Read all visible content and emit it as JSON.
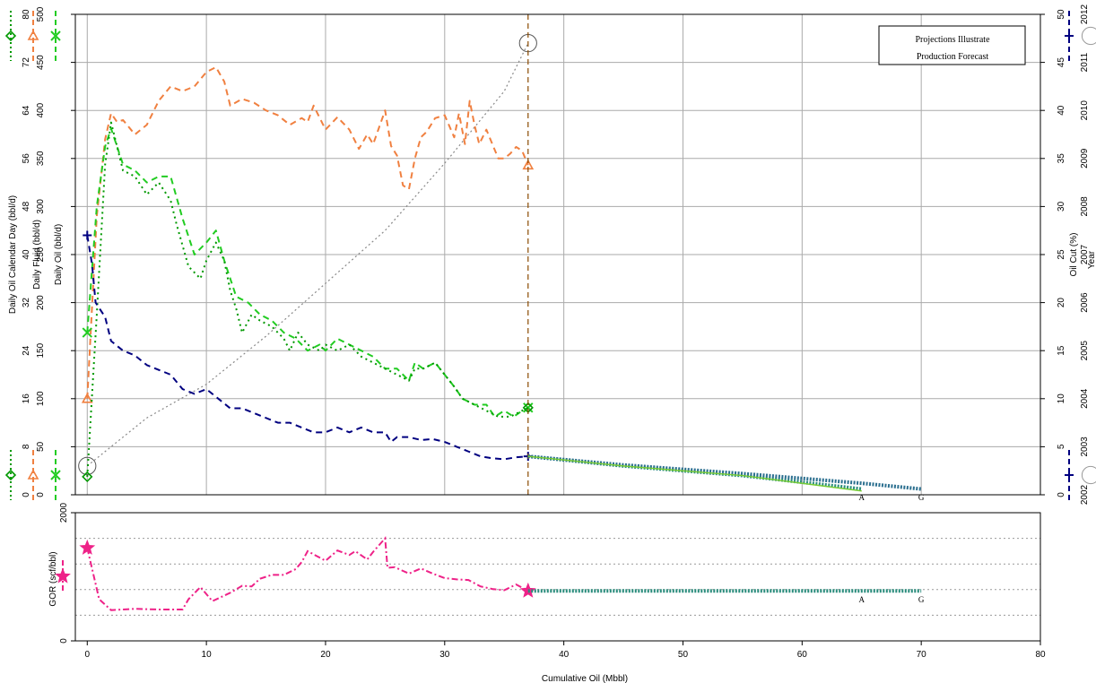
{
  "chart_data": [
    {
      "type": "line",
      "title": "",
      "xlabel": "Cumulative Oil (Mbbl)",
      "xlim": [
        -1,
        80
      ],
      "x_ticks": [
        "0",
        "10",
        "20",
        "30",
        "40",
        "50",
        "60",
        "70",
        "80"
      ],
      "grid": true,
      "left_axes": [
        {
          "label": "Daily Oil Calendar Day (bbl/d)",
          "ylim": [
            0,
            80
          ],
          "ticks": [
            "0",
            "8",
            "16",
            "24",
            "32",
            "40",
            "48",
            "56",
            "64",
            "72",
            "80"
          ]
        },
        {
          "label": "Daily Fluid (bbl/d)",
          "ylim": [
            0,
            500
          ],
          "ticks": [
            "0",
            "50",
            "100",
            "150",
            "200",
            "250",
            "300",
            "350",
            "400",
            "450",
            "500"
          ]
        },
        {
          "label": "Daily Oil (bbl/d)",
          "ylim": [
            0,
            500
          ],
          "ticks": []
        }
      ],
      "right_axes": [
        {
          "label": "Oil Cut (%)",
          "ylim": [
            0,
            50
          ],
          "ticks": [
            "0",
            "5",
            "10",
            "15",
            "20",
            "25",
            "30",
            "35",
            "40",
            "45",
            "50"
          ]
        },
        {
          "label": "Year",
          "ylim": [
            2002,
            2012
          ],
          "ticks": [
            "2002",
            "2003",
            "2004",
            "2005",
            "2006",
            "2007",
            "2008",
            "2009",
            "2010",
            "2011",
            "2012"
          ]
        }
      ],
      "legend_box": {
        "line1": "Projections Illustrate",
        "line2": "Production Forecast",
        "placement": "top-right"
      },
      "marker_keys": {
        "left": [
          {
            "color": "#009900",
            "symbol": "◇"
          },
          {
            "color": "#f08040",
            "symbol": "△"
          },
          {
            "color": "#22cc22",
            "symbol": "✕"
          }
        ],
        "right": [
          {
            "color": "#000080",
            "symbol": "+"
          },
          {
            "color": "#999999",
            "symbol": "○"
          }
        ]
      },
      "vline_x": 37,
      "forecast_labels": [
        {
          "text": "A",
          "x": 65
        },
        {
          "text": "G",
          "x": 70
        }
      ],
      "series": [
        {
          "color": "#f08040",
          "dash": "7,5",
          "axis": "Daily Fluid (bbl/d)",
          "marker": "triangle",
          "x": [
            0,
            0.8,
            1.5,
            2,
            2.5,
            3,
            4,
            5,
            6,
            7,
            8,
            9,
            10,
            10.8,
            11.5,
            12,
            13,
            14,
            15,
            16,
            17,
            18,
            18.5,
            19,
            20,
            21,
            22,
            22.8,
            23.5,
            24,
            25,
            25.5,
            26,
            26.5,
            27,
            27.5,
            28,
            28.5,
            29.2,
            30,
            30.8,
            31.2,
            31.7,
            32.1,
            32.5,
            32.9,
            33.5,
            34,
            34.5,
            35,
            35.5,
            36,
            36.5,
            37
          ],
          "y": [
            100,
            290,
            370,
            397,
            388,
            390,
            375,
            385,
            410,
            425,
            420,
            425,
            440,
            445,
            430,
            405,
            412,
            408,
            400,
            395,
            385,
            392,
            388,
            405,
            380,
            393,
            380,
            360,
            375,
            365,
            400,
            363,
            353,
            322,
            318,
            350,
            372,
            378,
            392,
            395,
            372,
            397,
            365,
            410,
            385,
            365,
            380,
            365,
            350,
            350,
            355,
            362,
            358,
            343
          ]
        },
        {
          "color": "#22cc22",
          "dash": "7,5",
          "axis": "Daily Oil Calendar Day (bbl/d)",
          "marker": "x",
          "x": [
            0,
            0.8,
            1.5,
            2,
            3,
            4,
            5,
            6,
            7,
            8,
            9,
            10,
            10.8,
            11.5,
            12.5,
            13.5,
            14.5,
            15.5,
            16.5,
            17.5,
            18,
            18.5,
            19.5,
            20,
            21,
            22,
            23,
            24,
            25,
            26,
            27,
            27.5,
            28.2,
            29.2,
            30,
            30.8,
            31.5,
            32.5,
            33.5,
            34.2,
            35,
            35.8,
            36.5,
            37
          ],
          "y": [
            27,
            48,
            58,
            61,
            55,
            54,
            52,
            53,
            53,
            46,
            40,
            42,
            44,
            39,
            33,
            32,
            30,
            29,
            27,
            26,
            25,
            24,
            25,
            24,
            26,
            25,
            24,
            23,
            21,
            21,
            19,
            22,
            21,
            22,
            20,
            18,
            16,
            15,
            15,
            13,
            14,
            13,
            14,
            14.5
          ]
        },
        {
          "color": "#009900",
          "dash": "2,4",
          "axis": "Daily Oil Calendar Day (bbl/d)",
          "marker": "diamond",
          "x": [
            0,
            0.8,
            1.5,
            2,
            3,
            4,
            5,
            6,
            7,
            7.5,
            8.5,
            9.5,
            10,
            10.8,
            11.5,
            12,
            12.5,
            13,
            13.8,
            14.5,
            15.5,
            16.5,
            17,
            17.7,
            18.5,
            19.5,
            20,
            21,
            22,
            23,
            24,
            25,
            26,
            27,
            27.5,
            28.2,
            29.2,
            30,
            30.8,
            31.5,
            32.5,
            33.5,
            34.5,
            35.5,
            36.5,
            37
          ],
          "y": [
            3,
            30,
            55,
            62,
            54,
            53,
            50,
            52,
            49,
            45,
            38,
            36,
            39,
            42,
            39,
            34,
            31,
            27,
            30,
            29,
            28,
            26,
            24,
            27,
            25,
            24,
            25,
            24,
            25,
            23,
            22,
            21,
            20,
            19,
            21,
            21,
            22,
            20,
            18,
            16,
            15,
            14,
            13,
            13,
            14,
            14.5
          ]
        },
        {
          "color": "#000080",
          "dash": "7,5",
          "axis": "Oil Cut (%)",
          "marker": "plus",
          "x": [
            0,
            0.4,
            0.7,
            1.5,
            2,
            3,
            4,
            5,
            6,
            7,
            8,
            9,
            10,
            11,
            12,
            13,
            14,
            15,
            16,
            17,
            18,
            19,
            20,
            21,
            22,
            23,
            24,
            25,
            25.5,
            26,
            27,
            28,
            29,
            30,
            31,
            32,
            33,
            34,
            35,
            36,
            37
          ],
          "y": [
            27,
            24,
            20,
            18.5,
            16,
            15,
            14.5,
            13.5,
            13,
            12.5,
            11,
            10.5,
            11,
            10,
            9,
            9,
            8.5,
            8,
            7.5,
            7.5,
            7,
            6.5,
            6.5,
            7,
            6.5,
            7,
            6.5,
            6.5,
            5.5,
            6,
            6,
            5.7,
            5.8,
            5.5,
            5,
            4.5,
            4,
            3.8,
            3.7,
            3.9,
            4
          ]
        }
      ],
      "forecast": [
        {
          "name": "A",
          "color": "#2a8c7c",
          "x": [
            37,
            45,
            55,
            65
          ],
          "y_oil_cut": [
            4,
            3,
            2,
            0.6
          ]
        },
        {
          "name": "G",
          "color": "#2b6f8f",
          "x": [
            37,
            45,
            55,
            65,
            70
          ],
          "y_oil_cut": [
            4,
            3.1,
            2.2,
            1.2,
            0.6
          ]
        }
      ],
      "year_curve": {
        "color": "#888888",
        "dash": "2,3",
        "x": [
          0,
          5,
          10,
          15,
          20,
          25,
          30,
          35,
          37
        ],
        "y_year": [
          2002.6,
          2003.6,
          2004.3,
          2005.3,
          2006.4,
          2007.5,
          2008.9,
          2010.4,
          2011.4
        ],
        "markers": "circle"
      }
    },
    {
      "type": "line",
      "title": "",
      "ylabel": "GOR (scf/bbl)",
      "ylim": [
        0,
        2000
      ],
      "y_ticks": [
        "0",
        "2000"
      ],
      "grid": true,
      "marker_key": {
        "color": "#ee2288",
        "symbol": "★"
      },
      "series": [
        {
          "color": "#ee2288",
          "dash": "7,3,2,3",
          "marker": "star",
          "x": [
            0,
            1,
            2,
            4,
            6,
            8,
            8.5,
            9.5,
            10.5,
            12,
            13,
            13.8,
            14.5,
            15.5,
            16.5,
            17.5,
            18,
            18.5,
            19,
            20,
            21,
            22,
            22.5,
            23.5,
            24,
            25,
            25.2,
            25.8,
            27,
            28,
            29,
            30,
            31,
            32,
            33,
            34,
            35,
            36,
            37
          ],
          "y": [
            1450,
            650,
            480,
            500,
            490,
            490,
            650,
            840,
            620,
            750,
            860,
            850,
            970,
            1030,
            1030,
            1120,
            1230,
            1400,
            1350,
            1250,
            1410,
            1340,
            1400,
            1270,
            1390,
            1600,
            1140,
            1150,
            1050,
            1130,
            1050,
            980,
            960,
            950,
            850,
            810,
            790,
            880,
            780
          ]
        }
      ],
      "forecast": [
        {
          "color": "#2a8c7c",
          "x": [
            37,
            65,
            70
          ],
          "y": [
            780,
            780,
            780
          ]
        }
      ],
      "forecast_labels": [
        {
          "text": "A",
          "x": 65
        },
        {
          "text": "G",
          "x": 70
        }
      ],
      "xlabel": "Cumulative Oil (Mbbl)"
    }
  ]
}
